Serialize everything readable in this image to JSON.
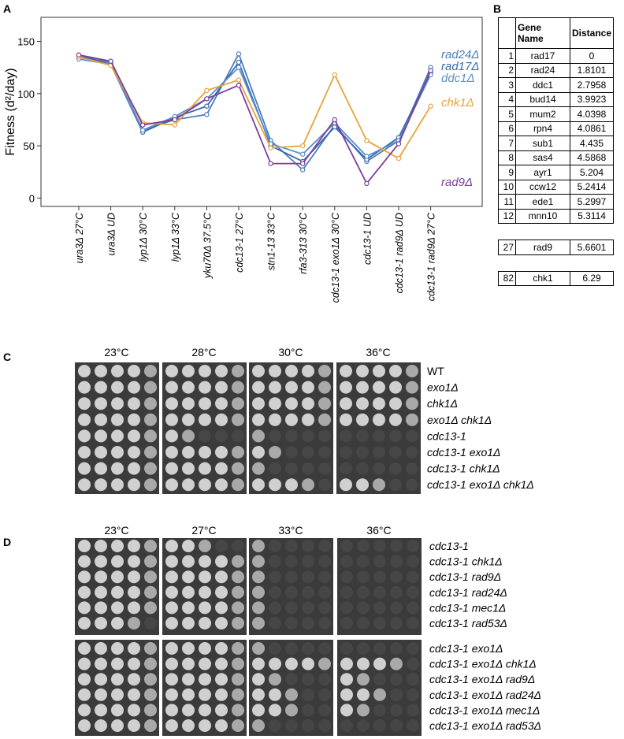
{
  "panel_labels": [
    "A",
    "B",
    "C",
    "D"
  ],
  "chart_data": {
    "type": "line",
    "y_label": "Fitness (d²/day)",
    "categories": [
      "ura3Δ 27°C",
      "ura3Δ UD",
      "lyp1Δ 30°C",
      "lyp1Δ 33°C",
      "yku70Δ 37.5°C",
      "cdc13-1 27°C",
      "stn1-13 33°C",
      "rfa3-313 30°C",
      "cdc13-1 exo1Δ 30°C",
      "cdc13-1 UD",
      "cdc13-1 rad9Δ UD",
      "cdc13-1 rad9Δ 27°C"
    ],
    "series": [
      {
        "name": "rad24Δ",
        "color": "#4a7ebf",
        "values": [
          135,
          130,
          65,
          75,
          80,
          138,
          55,
          27,
          70,
          35,
          55,
          125
        ]
      },
      {
        "name": "rad17Δ",
        "color": "#3a6aa8",
        "values": [
          137,
          128,
          63,
          77,
          88,
          130,
          50,
          35,
          68,
          37,
          58,
          120
        ]
      },
      {
        "name": "ddc1Δ",
        "color": "#5b8fcc",
        "values": [
          133,
          128,
          65,
          78,
          95,
          125,
          52,
          42,
          72,
          40,
          55,
          118
        ]
      },
      {
        "name": "chk1Δ",
        "color": "#e8a33a",
        "values": [
          135,
          127,
          72,
          70,
          103,
          113,
          48,
          50,
          118,
          55,
          38,
          88
        ]
      },
      {
        "name": "rad9Δ",
        "color": "#7b3f98",
        "values": [
          137,
          131,
          70,
          75,
          95,
          108,
          33,
          33,
          75,
          14,
          52,
          122
        ]
      }
    ],
    "ylim": [
      -8,
      173
    ],
    "yticks": [
      0,
      50,
      100,
      150
    ]
  },
  "table": {
    "columns": [
      "Gene Name",
      "Distance"
    ],
    "rows": [
      [
        1,
        "rad17",
        0
      ],
      [
        2,
        "rad24",
        1.8101
      ],
      [
        3,
        "ddc1",
        2.7958
      ],
      [
        4,
        "bud14",
        3.9923
      ],
      [
        5,
        "mum2",
        4.0398
      ],
      [
        6,
        "rpn4",
        4.0861
      ],
      [
        7,
        "sub1",
        4.435
      ],
      [
        8,
        "sas4",
        4.5868
      ],
      [
        9,
        "ayr1",
        5.204
      ],
      [
        10,
        "ccw12",
        5.2414
      ],
      [
        11,
        "ede1",
        5.2997
      ],
      [
        12,
        "mnn10",
        5.3114
      ]
    ],
    "extra_rows": [
      [
        27,
        "rad9",
        5.6601
      ],
      [
        82,
        "chk1",
        6.29
      ]
    ]
  },
  "panel_c": {
    "temperatures": [
      "23°C",
      "28°C",
      "30°C",
      "36°C"
    ],
    "strains": [
      "WT",
      "exo1Δ",
      "chk1Δ",
      "exo1Δ chk1Δ",
      "cdc13-1",
      "cdc13-1 exo1Δ",
      "cdc13-1 chk1Δ",
      "cdc13-1 exo1Δ chk1Δ"
    ]
  },
  "panel_d": {
    "temperatures": [
      "23°C",
      "27°C",
      "33°C",
      "36°C"
    ],
    "strains_top": [
      "cdc13-1",
      "cdc13-1 chk1Δ",
      "cdc13-1 rad9Δ",
      "cdc13-1 rad24Δ",
      "cdc13-1 mec1Δ",
      "cdc13-1 rad53Δ"
    ],
    "strains_bottom": [
      "cdc13-1 exo1Δ",
      "cdc13-1 exo1Δ chk1Δ",
      "cdc13-1 exo1Δ rad9Δ",
      "cdc13-1 exo1Δ rad24Δ",
      "cdc13-1 exo1Δ mec1Δ",
      "cdc13-1 exo1Δ rad53Δ"
    ]
  }
}
